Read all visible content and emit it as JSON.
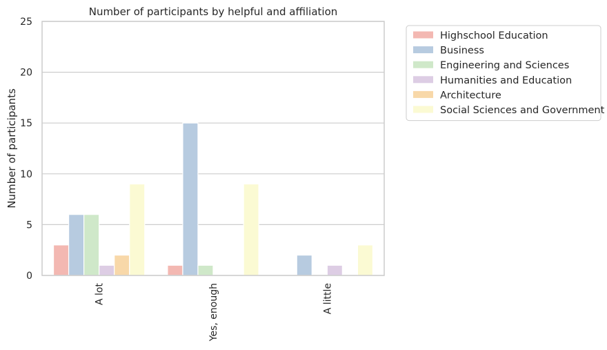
{
  "chart_data": {
    "type": "bar",
    "title": "Number of participants by helpful and affiliation",
    "xlabel": "",
    "ylabel": "Number of participants",
    "ylim": [
      0,
      25
    ],
    "yticks": [
      0,
      5,
      10,
      15,
      20,
      25
    ],
    "grid": true,
    "legend_position": "outside-right-top",
    "categories": [
      "A lot",
      "Yes, enough",
      "A little"
    ],
    "series": [
      {
        "name": "Highschool Education",
        "color": "#f3b8b2",
        "values": [
          3,
          1,
          0
        ]
      },
      {
        "name": "Business",
        "color": "#b7cbe0",
        "values": [
          6,
          15,
          2
        ]
      },
      {
        "name": "Engineering and Sciences",
        "color": "#cfe8c9",
        "values": [
          6,
          1,
          0
        ]
      },
      {
        "name": "Humanities and Education",
        "color": "#ddcde4",
        "values": [
          1,
          0,
          1
        ]
      },
      {
        "name": "Architecture",
        "color": "#f8d8a9",
        "values": [
          2,
          0,
          0
        ]
      },
      {
        "name": "Social Sciences and Government",
        "color": "#fbfad3",
        "values": [
          9,
          9,
          3
        ]
      }
    ]
  }
}
